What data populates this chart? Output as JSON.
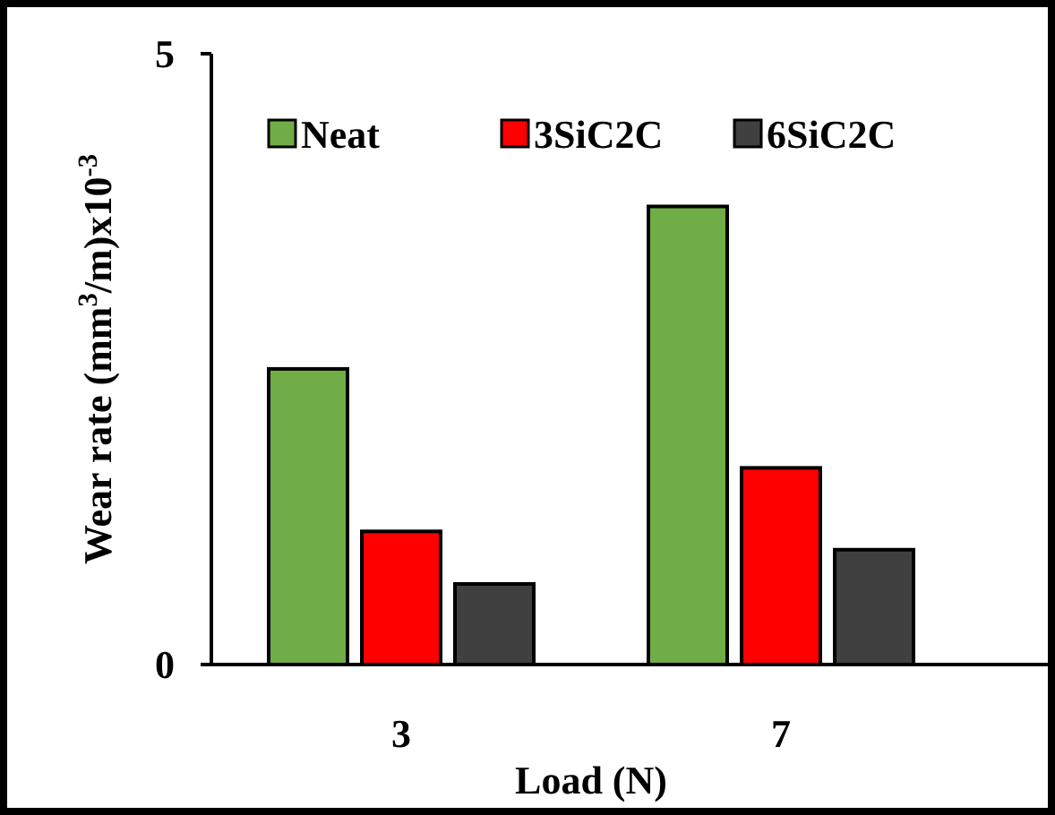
{
  "chart_data": {
    "type": "bar",
    "categories": [
      "3",
      "7"
    ],
    "xlabel": "Load (N)",
    "ylabel": "Wear rate (mm$^{3}$/m)x10$^{-3}$",
    "ylim": [
      0,
      5
    ],
    "yticks": [
      0,
      5
    ],
    "legend": "top",
    "series": [
      {
        "name": "Neat",
        "color": "#70ad47",
        "values": [
          2.42,
          3.75
        ]
      },
      {
        "name": "3SiC2C",
        "color": "#ff0000",
        "values": [
          1.09,
          1.61
        ]
      },
      {
        "name": "6SiC2C",
        "color": "#404040",
        "values": [
          0.66,
          0.94
        ]
      }
    ]
  }
}
